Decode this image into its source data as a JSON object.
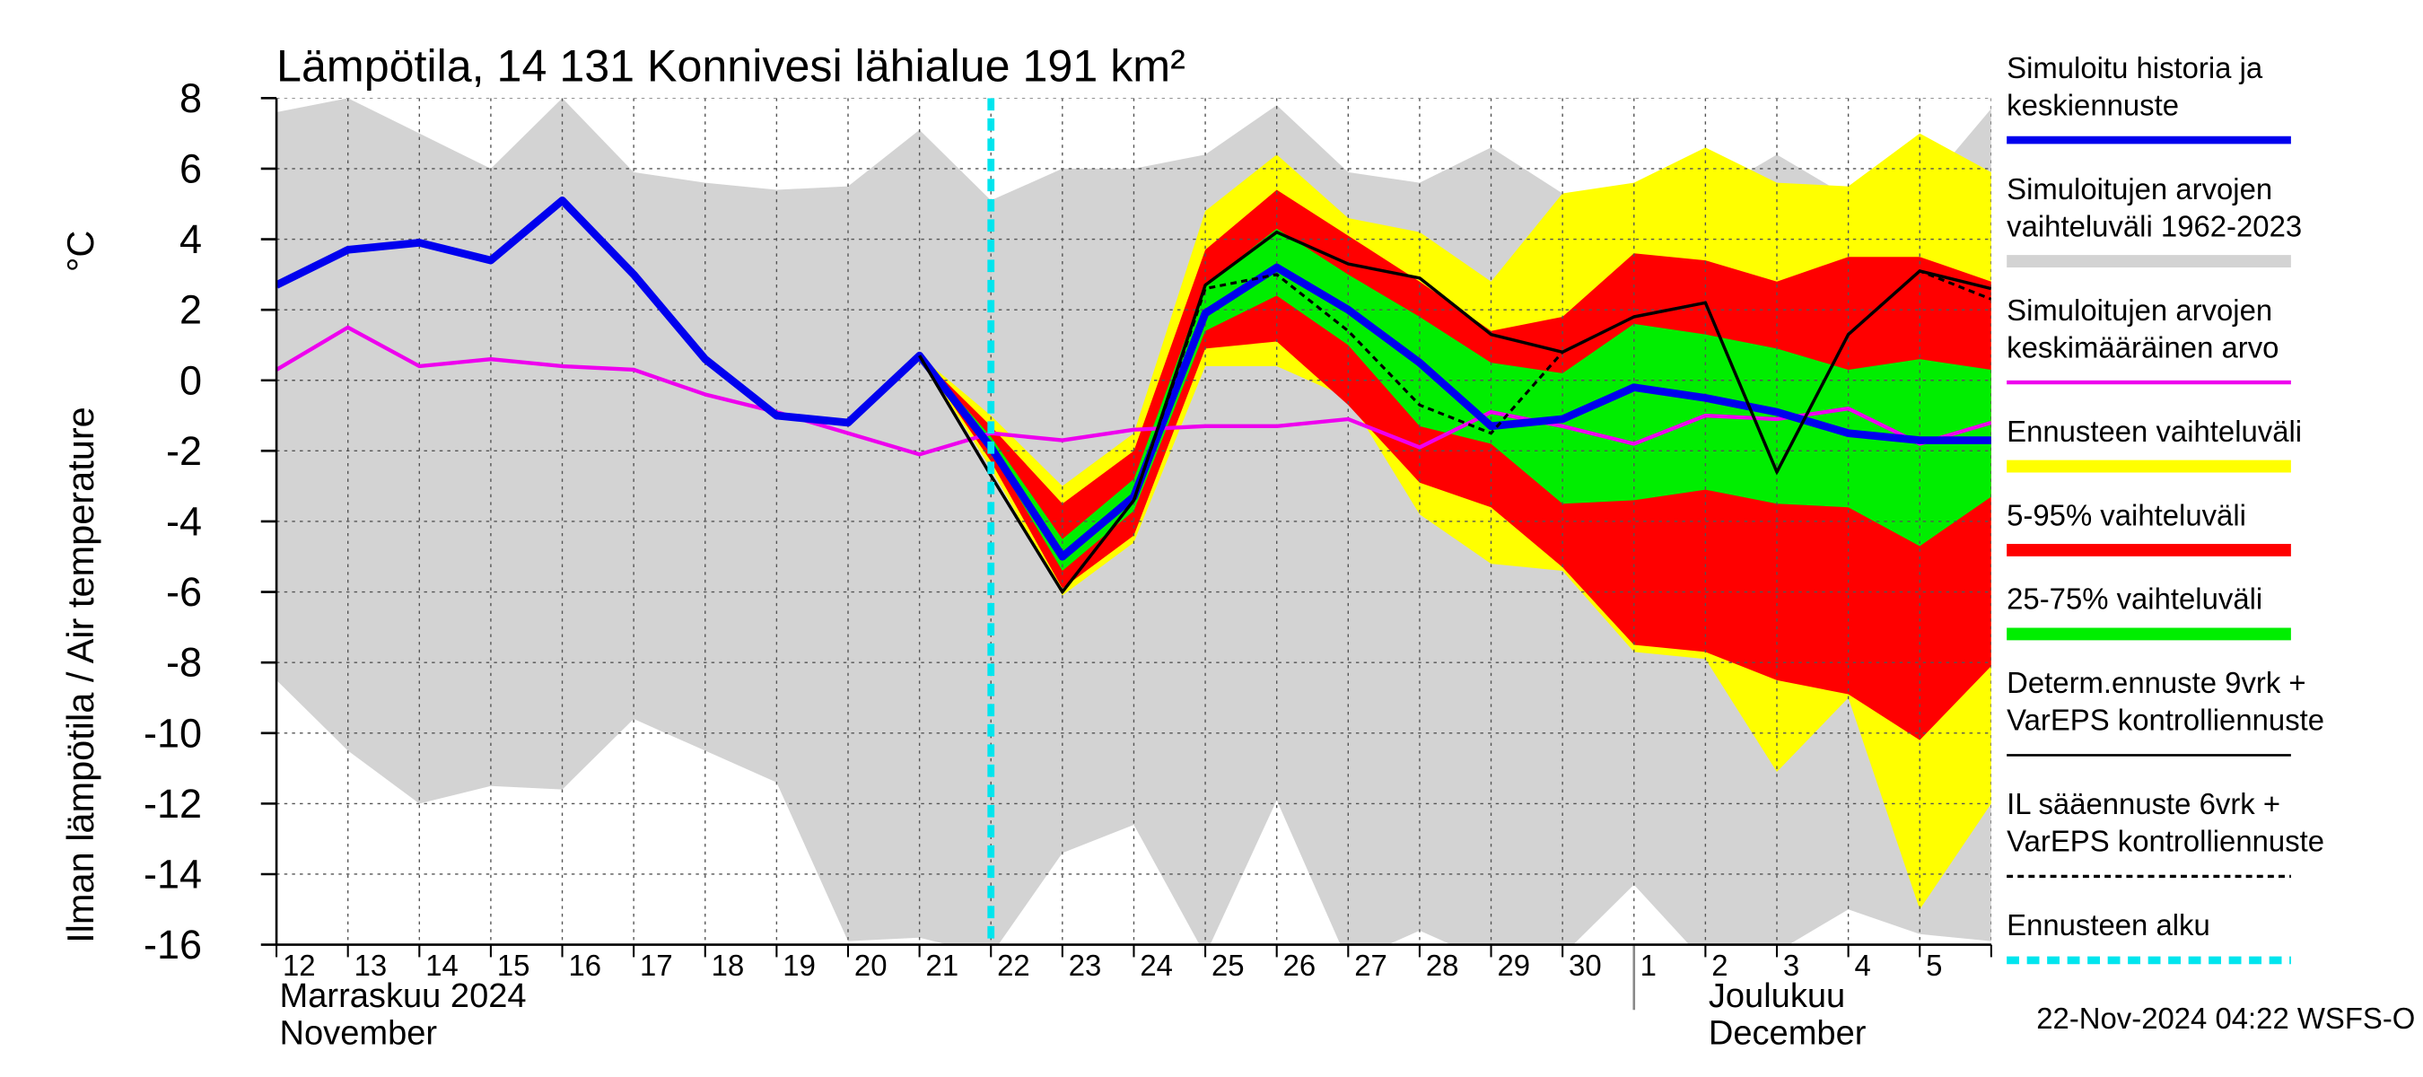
{
  "chart_data": {
    "type": "line",
    "title": "Lämpötila, 14 131 Konnivesi lähialue 191 km²",
    "y_label": "Ilman lämpötila / Air temperature",
    "y_unit": "°C",
    "month_labels": [
      [
        "Marraskuu 2024",
        "November"
      ],
      [
        "Joulukuu",
        "December"
      ]
    ],
    "footer": "22-Nov-2024 04:22 WSFS-O",
    "categories": [
      "12",
      "13",
      "14",
      "15",
      "16",
      "17",
      "18",
      "19",
      "20",
      "21",
      "22",
      "23",
      "24",
      "25",
      "26",
      "27",
      "28",
      "29",
      "30",
      "1",
      "2",
      "3",
      "4",
      "5",
      null
    ],
    "ylim": [
      -16,
      8
    ],
    "yticks": [
      -16,
      -14,
      -12,
      -10,
      -8,
      -6,
      -4,
      -2,
      0,
      2,
      4,
      6,
      8
    ],
    "grid": true,
    "legend": "right",
    "series": [
      {
        "name": [
          "Simuloitu historia ja",
          "keskiennuste"
        ],
        "kind": "line",
        "color": "#0000ee",
        "values": [
          2.7,
          3.7,
          3.9,
          3.4,
          5.1,
          3.0,
          0.6,
          -1.0,
          -1.2,
          0.7,
          -1.9,
          -5.0,
          -3.3,
          1.9,
          3.2,
          2.0,
          0.5,
          -1.3,
          -1.1,
          -0.2,
          -0.5,
          -0.9,
          -1.5,
          -1.7,
          -1.7
        ]
      },
      {
        "name": [
          "Simuloitujen arvojen",
          "vaihteluväli 1962-2023"
        ],
        "kind": "band",
        "color": "#d3d3d3",
        "upper": [
          7.6,
          8.0,
          7.0,
          6.0,
          8.0,
          5.9,
          5.6,
          5.4,
          5.5,
          7.1,
          5.1,
          6.0,
          6.0,
          6.4,
          7.8,
          5.9,
          5.6,
          6.6,
          5.3,
          4.7,
          5.2,
          6.4,
          5.2,
          5.3,
          7.7
        ],
        "lower": [
          -8.5,
          -10.5,
          -12.0,
          -11.5,
          -11.6,
          -9.6,
          -10.5,
          -11.4,
          -15.9,
          -15.8,
          -16.3,
          -13.4,
          -12.6,
          -16.3,
          -11.9,
          -16.5,
          -15.6,
          -16.5,
          -16.3,
          -14.3,
          -16.5,
          -16.2,
          -15.0,
          -15.7,
          -15.9
        ]
      },
      {
        "name": [
          "Simuloitujen arvojen",
          "keskimääräinen arvo"
        ],
        "kind": "line",
        "color": "#ee00ee",
        "values": [
          0.3,
          1.5,
          0.4,
          0.6,
          0.4,
          0.3,
          -0.4,
          -0.9,
          -1.5,
          -2.1,
          -1.5,
          -1.7,
          -1.4,
          -1.3,
          -1.3,
          -1.1,
          -1.9,
          -0.9,
          -1.3,
          -1.8,
          -1.0,
          -1.1,
          -0.8,
          -1.8,
          -1.2
        ]
      },
      {
        "name": [
          "Ennusteen vaihteluväli"
        ],
        "kind": "band",
        "color": "#ffff00",
        "upper": [
          null,
          null,
          null,
          null,
          null,
          null,
          null,
          null,
          null,
          0.7,
          -1.0,
          -3.0,
          -1.5,
          4.8,
          6.4,
          4.6,
          4.2,
          2.8,
          5.3,
          5.6,
          6.6,
          5.6,
          5.5,
          7.0,
          5.9
        ],
        "lower": [
          null,
          null,
          null,
          null,
          null,
          null,
          null,
          null,
          null,
          0.7,
          -2.5,
          -6.1,
          -4.6,
          0.4,
          0.4,
          -0.5,
          -3.8,
          -5.2,
          -5.4,
          -7.7,
          -7.9,
          -11.1,
          -9.0,
          -15.0,
          -12.0
        ]
      },
      {
        "name": [
          "5-95% vaihteluväli"
        ],
        "kind": "band",
        "color": "#ff0000",
        "upper": [
          null,
          null,
          null,
          null,
          null,
          null,
          null,
          null,
          null,
          0.7,
          -1.3,
          -3.5,
          -2.0,
          3.7,
          5.4,
          4.1,
          2.8,
          1.4,
          1.8,
          3.6,
          3.4,
          2.8,
          3.5,
          3.5,
          2.8
        ],
        "lower": [
          null,
          null,
          null,
          null,
          null,
          null,
          null,
          null,
          null,
          0.7,
          -2.3,
          -5.9,
          -4.4,
          0.9,
          1.1,
          -0.7,
          -2.9,
          -3.6,
          -5.3,
          -7.5,
          -7.7,
          -8.5,
          -8.9,
          -10.2,
          -8.1
        ]
      },
      {
        "name": [
          "25-75% vaihteluväli"
        ],
        "kind": "band",
        "color": "#00ee00",
        "upper": [
          null,
          null,
          null,
          null,
          null,
          null,
          null,
          null,
          null,
          0.7,
          -1.6,
          -4.5,
          -2.8,
          2.7,
          4.3,
          3.0,
          1.8,
          0.5,
          0.2,
          1.6,
          1.3,
          0.9,
          0.3,
          0.6,
          0.3
        ],
        "lower": [
          null,
          null,
          null,
          null,
          null,
          null,
          null,
          null,
          null,
          0.7,
          -2.0,
          -5.4,
          -3.7,
          1.4,
          2.4,
          1.0,
          -1.3,
          -1.8,
          -3.5,
          -3.4,
          -3.1,
          -3.5,
          -3.6,
          -4.7,
          -3.3
        ]
      },
      {
        "name": [
          "Determ.ennuste 9vrk +",
          "VarEPS kontrolliennuste"
        ],
        "kind": "line",
        "color": "#000000",
        "values": [
          null,
          null,
          null,
          null,
          null,
          null,
          null,
          null,
          null,
          0.7,
          -2.7,
          -6.0,
          -3.4,
          2.7,
          4.2,
          3.3,
          2.9,
          1.3,
          0.8,
          1.8,
          2.2,
          -2.6,
          1.3,
          3.1,
          2.6
        ]
      },
      {
        "name": [
          "IL sääennuste 6vrk  +",
          "  VarEPS kontrolliennuste"
        ],
        "kind": "dashed",
        "color": "#000000",
        "values": [
          null,
          null,
          null,
          null,
          null,
          null,
          null,
          null,
          null,
          0.7,
          -2.7,
          -6.0,
          -3.4,
          2.6,
          3.0,
          1.4,
          -0.7,
          -1.5,
          0.8,
          1.8,
          2.2,
          -2.6,
          1.3,
          3.1,
          2.3
        ]
      },
      {
        "name": [
          "Ennusteen alku"
        ],
        "kind": "vline",
        "color": "#00e5ee",
        "at": 10
      }
    ]
  }
}
